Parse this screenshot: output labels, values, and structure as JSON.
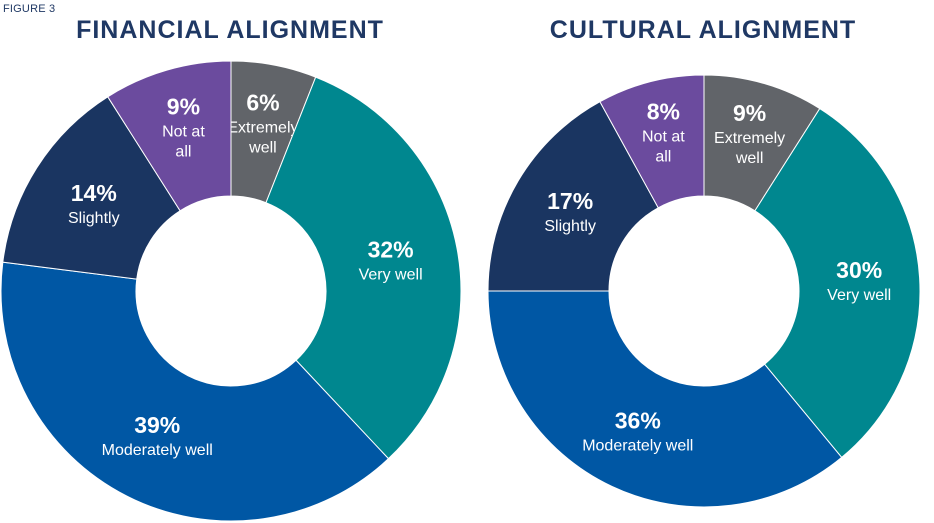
{
  "figure_label": "FIGURE 3",
  "chart_data": [
    {
      "type": "pie",
      "title": "FINANCIAL ALIGNMENT",
      "slices": [
        {
          "label": "Extremely well",
          "value": 6,
          "value_label": "6%",
          "label_lines": [
            "Extremely",
            "well"
          ],
          "color": "#616469"
        },
        {
          "label": "Very well",
          "value": 32,
          "value_label": "32%",
          "label_lines": [
            "Very well"
          ],
          "color": "#00878f"
        },
        {
          "label": "Moderately well",
          "value": 39,
          "value_label": "39%",
          "label_lines": [
            "Moderately well"
          ],
          "color": "#0057a4"
        },
        {
          "label": "Slightly",
          "value": 14,
          "value_label": "14%",
          "label_lines": [
            "Slightly"
          ],
          "color": "#1a3561"
        },
        {
          "label": "Not at all",
          "value": 9,
          "value_label": "9%",
          "label_lines": [
            "Not at",
            "all"
          ],
          "color": "#6b4b9e"
        }
      ]
    },
    {
      "type": "pie",
      "title": "CULTURAL ALIGNMENT",
      "slices": [
        {
          "label": "Extremely well",
          "value": 9,
          "value_label": "9%",
          "label_lines": [
            "Extremely",
            "well"
          ],
          "color": "#616469"
        },
        {
          "label": "Very well",
          "value": 30,
          "value_label": "30%",
          "label_lines": [
            "Very well"
          ],
          "color": "#00878f"
        },
        {
          "label": "Moderately well",
          "value": 36,
          "value_label": "36%",
          "label_lines": [
            "Moderately well"
          ],
          "color": "#0057a4"
        },
        {
          "label": "Slightly",
          "value": 17,
          "value_label": "17%",
          "label_lines": [
            "Slightly"
          ],
          "color": "#1a3561"
        },
        {
          "label": "Not at all",
          "value": 8,
          "value_label": "8%",
          "label_lines": [
            "Not at",
            "all"
          ],
          "color": "#6b4b9e"
        }
      ]
    }
  ]
}
